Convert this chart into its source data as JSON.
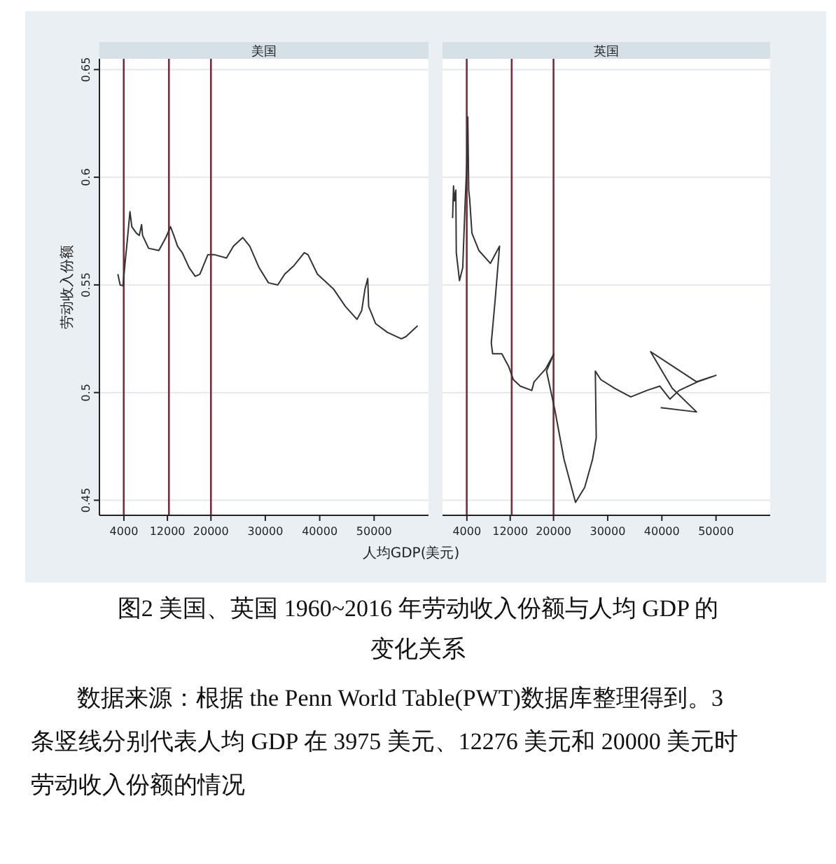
{
  "chart_data": [
    {
      "type": "line",
      "title": "美国",
      "ylabel": "劳动收入份额",
      "xlabel": "人均GDP(美元)",
      "xlim": [
        -500,
        60000
      ],
      "ylim": [
        0.443,
        0.655
      ],
      "xticks": [
        4000,
        12000,
        20000,
        30000,
        40000,
        50000
      ],
      "yticks": [
        0.45,
        0.5,
        0.55,
        0.6,
        0.65
      ],
      "grid": "y",
      "ref_lines": [
        {
          "axis": "x",
          "value": 3975,
          "color": "#7a2a3a"
        },
        {
          "axis": "x",
          "value": 12276,
          "color": "#7a2a3a"
        },
        {
          "axis": "x",
          "value": 20000,
          "color": "#7a2a3a"
        }
      ],
      "series": [
        {
          "color": "#333333",
          "x": [
            2886,
            3314,
            3829,
            4171,
            4600,
            5114,
            5457,
            6314,
            6828,
            7257,
            7428,
            8542,
            10428,
            11714,
            12571,
            13171,
            13857,
            14714,
            16000,
            17114,
            17971,
            19428,
            20714,
            22857,
            24142,
            25857,
            27142,
            28857,
            30571,
            32285,
            33571,
            35285,
            37171,
            37857,
            39571,
            42571,
            44714,
            46857,
            47714,
            48314,
            48828,
            49000,
            50285,
            52428,
            54999,
            55857,
            58000
          ],
          "values": [
            0.555,
            0.55,
            0.5496,
            0.559,
            0.57,
            0.584,
            0.577,
            0.574,
            0.573,
            0.578,
            0.573,
            0.567,
            0.566,
            0.572,
            0.577,
            0.573,
            0.568,
            0.565,
            0.558,
            0.554,
            0.555,
            0.564,
            0.564,
            0.5625,
            0.568,
            0.572,
            0.568,
            0.558,
            0.551,
            0.55,
            0.555,
            0.559,
            0.565,
            0.564,
            0.555,
            0.548,
            0.54,
            0.534,
            0.538,
            0.548,
            0.553,
            0.54,
            0.532,
            0.528,
            0.525,
            0.526,
            0.531
          ]
        }
      ],
      "annotations": [
        "图2  美国、英国 1960~2016 年劳动收入份额与人均 GDP 的变化关系",
        "数据来源：根据 the Penn World Table(PWT)数据库整理得到。3 条竖线分别代表人均 GDP 在 3975 美元、12276 美元和 20000 美元时劳动收入份额的情况"
      ]
    },
    {
      "type": "line",
      "title": "英国",
      "xlim": [
        -500,
        60000
      ],
      "ylim": [
        0.443,
        0.655
      ],
      "xticks": [
        4000,
        12000,
        20000,
        30000,
        40000,
        50000
      ],
      "yticks": [
        0.45,
        0.5,
        0.55,
        0.6,
        0.65
      ],
      "grid": "y",
      "tick_labels": "x",
      "ref_lines": [
        {
          "axis": "x",
          "value": 3975,
          "color": "#7a2a3a"
        },
        {
          "axis": "x",
          "value": 12276,
          "color": "#7a2a3a"
        },
        {
          "axis": "x",
          "value": 20000,
          "color": "#7a2a3a"
        }
      ],
      "series": [
        {
          "color": "#333333",
          "x": [
            1365,
            1535,
            1705,
            1960,
            2045,
            2640,
            3235,
            3660,
            4000,
            4170,
            4340,
            4510,
            4935,
            6210,
            8335,
            10035,
            9185,
            8505,
            8760,
            10460,
            11735,
            12585,
            13860,
            15985,
            16410,
            18535,
            20065,
            18705,
            20235,
            21935,
            24060,
            25760,
            27205,
            27885,
            27715,
            28735,
            31285,
            34260,
            37235,
            39615,
            41485,
            43185,
            46585,
            49985,
            46415,
            37915,
            41910,
            46415,
            39785
          ],
          "values": [
            0.581,
            0.596,
            0.589,
            0.594,
            0.565,
            0.552,
            0.558,
            0.587,
            0.607,
            0.628,
            0.594,
            0.59,
            0.574,
            0.566,
            0.56,
            0.568,
            0.542,
            0.523,
            0.518,
            0.518,
            0.512,
            0.506,
            0.503,
            0.501,
            0.505,
            0.511,
            0.518,
            0.51,
            0.492,
            0.469,
            0.449,
            0.456,
            0.469,
            0.479,
            0.51,
            0.506,
            0.502,
            0.498,
            0.501,
            0.503,
            0.497,
            0.501,
            0.505,
            0.508,
            0.505,
            0.519,
            0.502,
            0.491,
            0.493
          ]
        }
      ]
    }
  ]
}
